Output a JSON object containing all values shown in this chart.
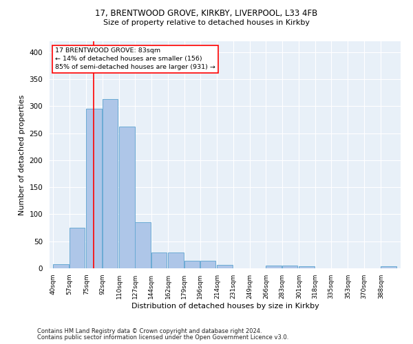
{
  "title_line1": "17, BRENTWOOD GROVE, KIRKBY, LIVERPOOL, L33 4FB",
  "title_line2": "Size of property relative to detached houses in Kirkby",
  "xlabel": "Distribution of detached houses by size in Kirkby",
  "ylabel": "Number of detached properties",
  "bar_color": "#aec6e8",
  "bar_edge_color": "#6aaad4",
  "background_color": "#e8f0f8",
  "annotation_box_text": "17 BRENTWOOD GROVE: 83sqm\n← 14% of detached houses are smaller (156)\n85% of semi-detached houses are larger (931) →",
  "categories": [
    "40sqm",
    "57sqm",
    "75sqm",
    "92sqm",
    "110sqm",
    "127sqm",
    "144sqm",
    "162sqm",
    "179sqm",
    "196sqm",
    "214sqm",
    "231sqm",
    "249sqm",
    "266sqm",
    "283sqm",
    "301sqm",
    "318sqm",
    "335sqm",
    "353sqm",
    "370sqm",
    "388sqm"
  ],
  "bin_edges": [
    40,
    57,
    75,
    92,
    110,
    127,
    144,
    162,
    179,
    196,
    214,
    231,
    249,
    266,
    283,
    301,
    318,
    335,
    353,
    370,
    388
  ],
  "bar_heights": [
    8,
    75,
    295,
    313,
    262,
    85,
    29,
    29,
    14,
    14,
    7,
    0,
    0,
    5,
    5,
    4,
    0,
    0,
    0,
    0,
    4
  ],
  "ylim": [
    0,
    420
  ],
  "yticks": [
    0,
    50,
    100,
    150,
    200,
    250,
    300,
    350,
    400
  ],
  "vline_x": 83,
  "footer_line1": "Contains HM Land Registry data © Crown copyright and database right 2024.",
  "footer_line2": "Contains public sector information licensed under the Open Government Licence v3.0."
}
